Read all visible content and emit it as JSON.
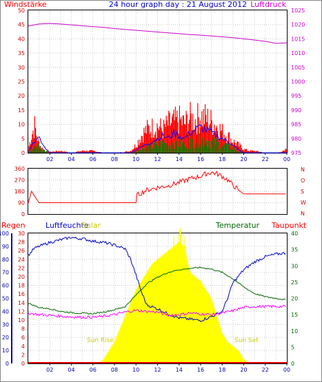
{
  "header": {
    "left_label": "Windstärke",
    "title": "24 hour graph day : 21 August 2012",
    "right_label": "Luftdruck"
  },
  "colors": {
    "wind": "#ff0000",
    "gust": "#0000ff",
    "wind_green": "#008000",
    "pressure": "#cc00cc",
    "humidity": "#0000cc",
    "temperature": "#006600",
    "dewpoint": "#ff00ff",
    "solar": "#ffff00",
    "rain": "#ff0000",
    "axis_red": "#cc0000",
    "axis_blue": "#0000aa",
    "axis_green": "#006600",
    "grid": "#c8c8c8"
  },
  "x_ticks": [
    "02",
    "04",
    "06",
    "08",
    "10",
    "12",
    "14",
    "16",
    "18",
    "20",
    "22",
    "00"
  ],
  "chart_data": [
    {
      "type": "line",
      "name": "wind-pressure",
      "left_axis": {
        "label": "Windstärke",
        "ticks": [
          "0",
          "5",
          "10",
          "15",
          "20",
          "25",
          "30",
          "35",
          "40",
          "45",
          "50"
        ],
        "ylim": [
          0,
          50
        ]
      },
      "right_axis": {
        "label": "Luftdruck",
        "ticks": [
          "975",
          "980",
          "985",
          "990",
          "995",
          "1000",
          "1005",
          "1010",
          "1015",
          "1020",
          "1025"
        ],
        "ylim": [
          975,
          1025
        ]
      },
      "pressure": {
        "x": [
          0,
          1,
          2,
          3,
          4,
          5,
          6,
          7,
          8,
          9,
          10,
          11,
          12,
          13,
          14,
          15,
          16,
          17,
          18,
          19,
          20,
          21,
          22,
          23,
          24
        ],
        "y": [
          1019.5,
          1020.2,
          1020.4,
          1020.2,
          1019.9,
          1019.6,
          1019.3,
          1019.0,
          1018.6,
          1018.3,
          1018.0,
          1017.7,
          1017.4,
          1017.1,
          1016.8,
          1016.5,
          1016.3,
          1016.0,
          1015.7,
          1015.4,
          1015.0,
          1014.6,
          1014.1,
          1013.4,
          1013.6
        ]
      },
      "wind_envelope": {
        "x": [
          0,
          0.3,
          0.6,
          0.9,
          1.2,
          1.5,
          2.0,
          3.0,
          4.0,
          5.0,
          6.0,
          7.0,
          8.0,
          9.0,
          9.5,
          10.0,
          10.5,
          11.0,
          11.5,
          12.0,
          12.5,
          13.0,
          13.5,
          14.0,
          14.5,
          15.0,
          15.5,
          16.0,
          16.5,
          17.0,
          17.5,
          18.0,
          18.5,
          19.0,
          19.5,
          20.0,
          20.5,
          21.0,
          22.0,
          23.0,
          23.8,
          24
        ],
        "y": [
          2,
          9,
          14,
          6,
          3,
          1,
          0.5,
          1,
          0,
          1,
          1,
          0,
          0,
          0.5,
          1,
          4,
          9,
          12,
          13,
          14,
          12,
          15,
          16,
          17,
          15,
          18,
          17,
          19,
          18,
          16,
          14,
          11,
          9,
          6,
          4,
          2,
          1,
          1,
          0,
          0,
          1,
          4
        ]
      },
      "gust_envelope": {
        "x": [
          0,
          0.5,
          1.0,
          1.5,
          2.0,
          9.5,
          10.0,
          10.5,
          11.0,
          11.5,
          12.0,
          12.5,
          13.0,
          13.5,
          14.0,
          14.5,
          15.0,
          15.5,
          16.0,
          16.5,
          17.0,
          17.5,
          18.0,
          18.5,
          19.0,
          19.5,
          20.0,
          24
        ],
        "y": [
          0,
          4,
          5,
          2,
          0,
          0,
          1,
          2,
          3,
          4,
          5,
          6,
          5,
          7,
          6,
          5,
          7,
          8,
          9,
          8,
          7,
          6,
          5,
          4,
          3,
          1,
          0,
          0
        ]
      }
    },
    {
      "type": "line",
      "name": "wind-direction",
      "left_ticks": [
        "0",
        "90",
        "180",
        "270",
        "360"
      ],
      "right_ticks": [
        "N",
        "W",
        "S",
        "O",
        "N"
      ],
      "ylim": [
        0,
        360
      ],
      "x": [
        0,
        0.3,
        0.6,
        1.0,
        2,
        4,
        6,
        8,
        10,
        10.1,
        11,
        12,
        13,
        14,
        15,
        16,
        16.5,
        17,
        17.5,
        18,
        18.5,
        19,
        19.5,
        20,
        21,
        22,
        23,
        24
      ],
      "y": [
        90,
        180,
        140,
        90,
        90,
        90,
        90,
        90,
        90,
        150,
        190,
        210,
        225,
        250,
        280,
        300,
        320,
        330,
        320,
        300,
        270,
        230,
        190,
        160,
        160,
        160,
        160,
        160
      ]
    },
    {
      "type": "line",
      "name": "weather",
      "headers": {
        "rain": "Regen",
        "humidity": "Luftfeuchte",
        "solar": "Solar",
        "temperature": "Temperatur",
        "dewpoint": "Taupunkt"
      },
      "annotations": {
        "sunrise": "Sun Rise",
        "sunset": "Sun Set"
      },
      "axis_rain_ticks": [
        "0",
        "10",
        "20",
        "30",
        "40",
        "50",
        "60",
        "70",
        "80",
        "90",
        "100"
      ],
      "axis_humidity_ticks": [
        "0",
        "2",
        "4",
        "6",
        "8",
        "10",
        "12",
        "14",
        "16",
        "18",
        "20",
        "22",
        "24",
        "26",
        "28",
        "30"
      ],
      "axis_temp_ticks": [
        "0",
        "5",
        "10",
        "15",
        "20",
        "25",
        "30",
        "35",
        "40"
      ],
      "humidity": {
        "ylim": [
          0,
          100
        ],
        "x": [
          0,
          0.5,
          1,
          2,
          3,
          4,
          4.5,
          5,
          6,
          7,
          8,
          9,
          9.5,
          10,
          10.5,
          11,
          12,
          13,
          14,
          15,
          16,
          17,
          18,
          18.5,
          19,
          20,
          21,
          22,
          23,
          24
        ],
        "y": [
          83,
          88,
          90,
          93,
          95,
          97,
          96,
          96,
          94,
          93,
          91,
          88,
          80,
          68,
          55,
          45,
          42,
          38,
          35,
          34,
          33,
          36,
          40,
          50,
          62,
          72,
          78,
          82,
          84,
          85
        ]
      },
      "temperature": {
        "ylim": [
          0,
          40
        ],
        "x": [
          0,
          1,
          2,
          3,
          4,
          5,
          6,
          7,
          8,
          9,
          10,
          11,
          12,
          13,
          14,
          15,
          16,
          17,
          18,
          19,
          20,
          21,
          22,
          23,
          24
        ],
        "y": [
          18.5,
          17.2,
          16.8,
          16.0,
          15.6,
          15.4,
          15.3,
          15.8,
          16.5,
          17.5,
          21.0,
          24.5,
          26.5,
          28.0,
          28.8,
          29.2,
          29.5,
          29.0,
          28.0,
          26.0,
          23.5,
          21.5,
          20.5,
          20.0,
          19.5
        ]
      },
      "dewpoint": {
        "ylim": [
          0,
          40
        ],
        "x": [
          0,
          1,
          2,
          3,
          4,
          5,
          6,
          7,
          8,
          9,
          10,
          11,
          12,
          13,
          14,
          15,
          16,
          17,
          18,
          19,
          20,
          21,
          22,
          23,
          24
        ],
        "y": [
          15.5,
          15.0,
          14.8,
          14.5,
          14.3,
          14.2,
          14.2,
          14.5,
          15.0,
          15.8,
          16.3,
          16.0,
          15.8,
          14.8,
          15.0,
          15.5,
          15.2,
          15.0,
          15.5,
          16.2,
          17.2,
          17.5,
          17.5,
          17.5,
          17.5
        ]
      },
      "solar": {
        "ylim": [
          0,
          30
        ],
        "x": [
          0,
          6.5,
          7,
          7.5,
          8,
          8.5,
          9,
          9.5,
          10,
          10.5,
          11,
          11.5,
          12,
          12.5,
          13,
          13.5,
          14,
          14.5,
          15,
          15.5,
          16,
          16.5,
          17,
          17.5,
          18,
          18.5,
          19,
          19.5,
          20,
          20.5,
          24
        ],
        "y": [
          0,
          0,
          1,
          3,
          5,
          8,
          11,
          14,
          17,
          19,
          21,
          23,
          24,
          25,
          26,
          27,
          28,
          27,
          21,
          20,
          19,
          17,
          15,
          11,
          7,
          5,
          4,
          3,
          1,
          0,
          0
        ]
      }
    }
  ]
}
